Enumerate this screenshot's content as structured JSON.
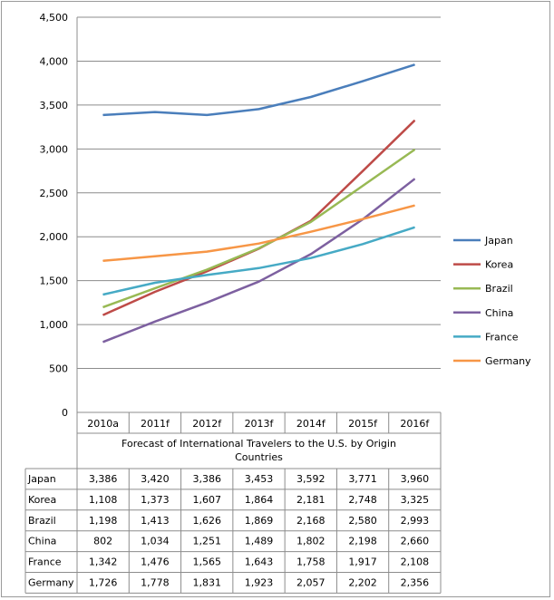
{
  "chart_data": {
    "type": "line",
    "title": "",
    "table_caption": "Forecast of International Travelers to the U.S. by Origin Countries",
    "caption_lines": [
      "Forecast of International Travelers to the U.S. by Origin",
      "Countries"
    ],
    "xlabel": "",
    "ylabel": "",
    "ylim": [
      0,
      4500
    ],
    "yticks": [
      0,
      500,
      1000,
      1500,
      2000,
      2500,
      3000,
      3500,
      4000,
      4500
    ],
    "ytick_labels": [
      "0",
      "500",
      "1,000",
      "1,500",
      "2,000",
      "2,500",
      "3,000",
      "3,500",
      "4,000",
      "4,500"
    ],
    "grid": true,
    "legend_position": "right",
    "categories": [
      "2010a",
      "2011f",
      "2012f",
      "2013f",
      "2014f",
      "2015f",
      "2016f"
    ],
    "series": [
      {
        "name": "Japan",
        "color": "#4a7ebb",
        "values": [
          3386,
          3420,
          3386,
          3453,
          3592,
          3771,
          3960
        ],
        "labels": [
          "3,386",
          "3,420",
          "3,386",
          "3,453",
          "3,592",
          "3,771",
          "3,960"
        ]
      },
      {
        "name": "Korea",
        "color": "#be4b48",
        "values": [
          1108,
          1373,
          1607,
          1864,
          2181,
          2748,
          3325
        ],
        "labels": [
          "1,108",
          "1,373",
          "1,607",
          "1,864",
          "2,181",
          "2,748",
          "3,325"
        ]
      },
      {
        "name": "Brazil",
        "color": "#98b954",
        "values": [
          1198,
          1413,
          1626,
          1869,
          2168,
          2580,
          2993
        ],
        "labels": [
          "1,198",
          "1,413",
          "1,626",
          "1,869",
          "2,168",
          "2,580",
          "2,993"
        ]
      },
      {
        "name": "China",
        "color": "#7d60a0",
        "values": [
          802,
          1034,
          1251,
          1489,
          1802,
          2198,
          2660
        ],
        "labels": [
          "802",
          "1,034",
          "1,251",
          "1,489",
          "1,802",
          "2,198",
          "2,660"
        ]
      },
      {
        "name": "France",
        "color": "#46aac5",
        "values": [
          1342,
          1476,
          1565,
          1643,
          1758,
          1917,
          2108
        ],
        "labels": [
          "1,342",
          "1,476",
          "1,565",
          "1,643",
          "1,758",
          "1,917",
          "2,108"
        ]
      },
      {
        "name": "Germany",
        "color": "#f79646",
        "values": [
          1726,
          1778,
          1831,
          1923,
          2057,
          2202,
          2356
        ],
        "labels": [
          "1,726",
          "1,778",
          "1,831",
          "1,923",
          "2,057",
          "2,202",
          "2,356"
        ]
      }
    ]
  }
}
